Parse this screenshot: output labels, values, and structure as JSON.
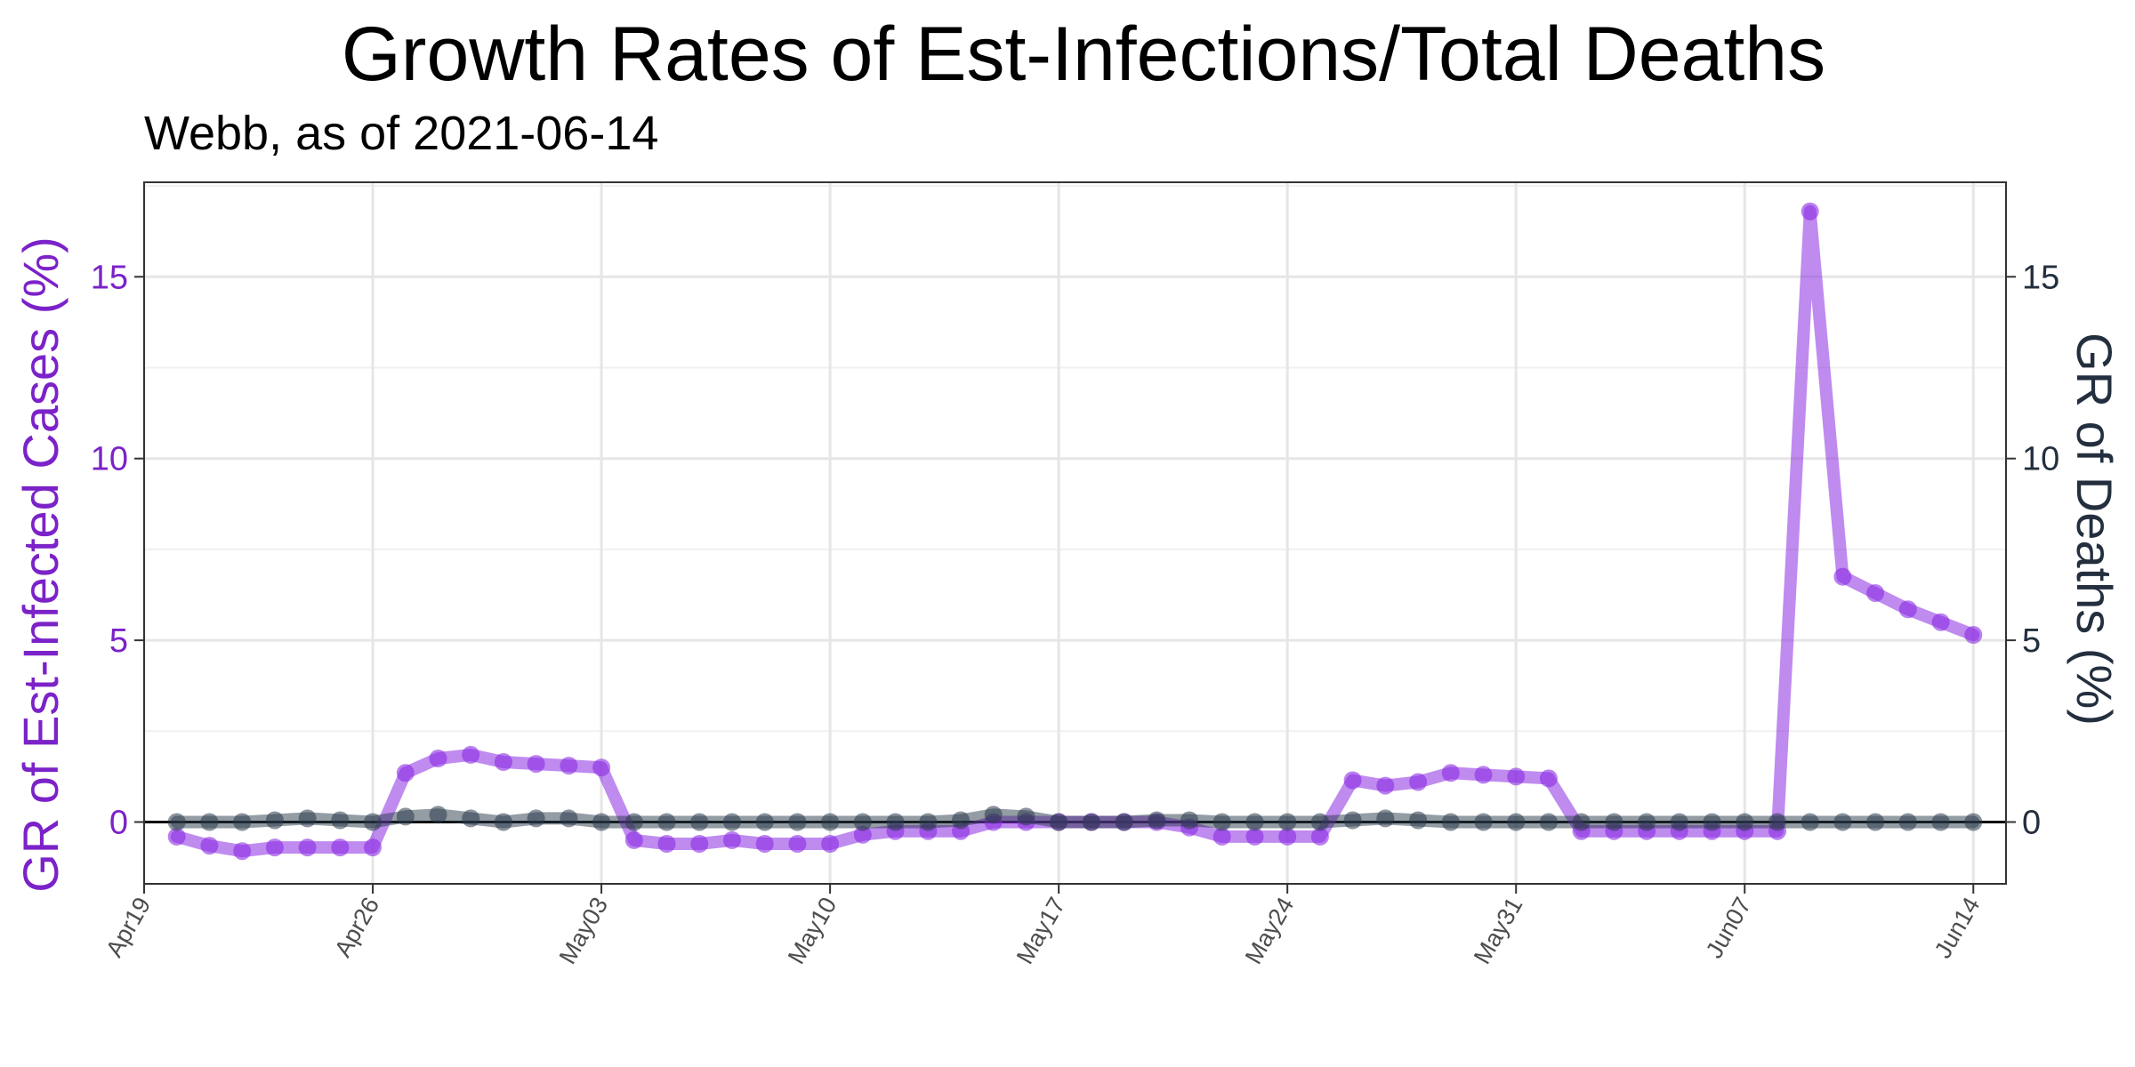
{
  "chart_data": {
    "type": "line",
    "title": "Growth Rates of Est-Infections/Total Deaths",
    "subtitle": "Webb, as of 2021-06-14",
    "ylabel_left": "GR of Est-Infected Cases (%)",
    "ylabel_right": "GR of Deaths (%)",
    "ylim": [
      -1.7,
      17.6
    ],
    "xlim": [
      "2021-04-19",
      "2021-06-15"
    ],
    "y_ticks": [
      "0",
      "5",
      "10",
      "15"
    ],
    "x_ticks": [
      {
        "date": "2021-04-19",
        "label": "Apr19"
      },
      {
        "date": "2021-04-26",
        "label": "Apr26"
      },
      {
        "date": "2021-05-03",
        "label": "May03"
      },
      {
        "date": "2021-05-10",
        "label": "May10"
      },
      {
        "date": "2021-05-17",
        "label": "May17"
      },
      {
        "date": "2021-05-24",
        "label": "May24"
      },
      {
        "date": "2021-05-31",
        "label": "May31"
      },
      {
        "date": "2021-06-07",
        "label": "Jun07"
      },
      {
        "date": "2021-06-14",
        "label": "Jun14"
      }
    ],
    "grid": true,
    "colors": {
      "cases": "#8a2be2",
      "deaths": "#2a3a4a",
      "left_axis": "#7b22c8",
      "right_axis": "#232f3e"
    },
    "series": [
      {
        "name": "GR of Est-Infected Cases (%)",
        "axis": "left",
        "points": [
          [
            "2021-04-20",
            -0.4
          ],
          [
            "2021-04-21",
            -0.65
          ],
          [
            "2021-04-22",
            -0.8
          ],
          [
            "2021-04-23",
            -0.7
          ],
          [
            "2021-04-24",
            -0.7
          ],
          [
            "2021-04-25",
            -0.7
          ],
          [
            "2021-04-26",
            -0.7
          ],
          [
            "2021-04-27",
            1.35
          ],
          [
            "2021-04-28",
            1.75
          ],
          [
            "2021-04-29",
            1.85
          ],
          [
            "2021-04-30",
            1.65
          ],
          [
            "2021-05-01",
            1.6
          ],
          [
            "2021-05-02",
            1.55
          ],
          [
            "2021-05-03",
            1.5
          ],
          [
            "2021-05-04",
            -0.5
          ],
          [
            "2021-05-05",
            -0.6
          ],
          [
            "2021-05-06",
            -0.6
          ],
          [
            "2021-05-07",
            -0.5
          ],
          [
            "2021-05-08",
            -0.6
          ],
          [
            "2021-05-09",
            -0.6
          ],
          [
            "2021-05-10",
            -0.6
          ],
          [
            "2021-05-11",
            -0.35
          ],
          [
            "2021-05-12",
            -0.25
          ],
          [
            "2021-05-13",
            -0.25
          ],
          [
            "2021-05-14",
            -0.25
          ],
          [
            "2021-05-15",
            0.0
          ],
          [
            "2021-05-16",
            0.0
          ],
          [
            "2021-05-17",
            0.0
          ],
          [
            "2021-05-18",
            0.0
          ],
          [
            "2021-05-19",
            0.0
          ],
          [
            "2021-05-20",
            0.0
          ],
          [
            "2021-05-21",
            -0.15
          ],
          [
            "2021-05-22",
            -0.4
          ],
          [
            "2021-05-23",
            -0.4
          ],
          [
            "2021-05-24",
            -0.4
          ],
          [
            "2021-05-25",
            -0.4
          ],
          [
            "2021-05-26",
            1.15
          ],
          [
            "2021-05-27",
            1.0
          ],
          [
            "2021-05-28",
            1.1
          ],
          [
            "2021-05-29",
            1.35
          ],
          [
            "2021-05-30",
            1.3
          ],
          [
            "2021-05-31",
            1.25
          ],
          [
            "2021-06-01",
            1.2
          ],
          [
            "2021-06-02",
            -0.25
          ],
          [
            "2021-06-03",
            -0.25
          ],
          [
            "2021-06-04",
            -0.25
          ],
          [
            "2021-06-05",
            -0.25
          ],
          [
            "2021-06-06",
            -0.25
          ],
          [
            "2021-06-07",
            -0.25
          ],
          [
            "2021-06-08",
            -0.25
          ],
          [
            "2021-06-09",
            16.8
          ],
          [
            "2021-06-10",
            6.75
          ],
          [
            "2021-06-11",
            6.3
          ],
          [
            "2021-06-12",
            5.85
          ],
          [
            "2021-06-13",
            5.5
          ],
          [
            "2021-06-14",
            5.15
          ]
        ]
      },
      {
        "name": "GR of Deaths (%)",
        "axis": "right",
        "points": [
          [
            "2021-04-20",
            0.0
          ],
          [
            "2021-04-21",
            0.0
          ],
          [
            "2021-04-22",
            0.0
          ],
          [
            "2021-04-23",
            0.05
          ],
          [
            "2021-04-24",
            0.1
          ],
          [
            "2021-04-25",
            0.05
          ],
          [
            "2021-04-26",
            0.0
          ],
          [
            "2021-04-27",
            0.15
          ],
          [
            "2021-04-28",
            0.2
          ],
          [
            "2021-04-29",
            0.1
          ],
          [
            "2021-04-30",
            0.0
          ],
          [
            "2021-05-01",
            0.1
          ],
          [
            "2021-05-02",
            0.1
          ],
          [
            "2021-05-03",
            0.0
          ],
          [
            "2021-05-04",
            0.0
          ],
          [
            "2021-05-05",
            0.0
          ],
          [
            "2021-05-06",
            0.0
          ],
          [
            "2021-05-07",
            0.0
          ],
          [
            "2021-05-08",
            0.0
          ],
          [
            "2021-05-09",
            0.0
          ],
          [
            "2021-05-10",
            0.0
          ],
          [
            "2021-05-11",
            0.0
          ],
          [
            "2021-05-12",
            0.0
          ],
          [
            "2021-05-13",
            0.0
          ],
          [
            "2021-05-14",
            0.05
          ],
          [
            "2021-05-15",
            0.2
          ],
          [
            "2021-05-16",
            0.15
          ],
          [
            "2021-05-17",
            0.0
          ],
          [
            "2021-05-18",
            0.0
          ],
          [
            "2021-05-19",
            0.0
          ],
          [
            "2021-05-20",
            0.05
          ],
          [
            "2021-05-21",
            0.05
          ],
          [
            "2021-05-22",
            0.0
          ],
          [
            "2021-05-23",
            0.0
          ],
          [
            "2021-05-24",
            0.0
          ],
          [
            "2021-05-25",
            0.0
          ],
          [
            "2021-05-26",
            0.05
          ],
          [
            "2021-05-27",
            0.1
          ],
          [
            "2021-05-28",
            0.05
          ],
          [
            "2021-05-29",
            0.0
          ],
          [
            "2021-05-30",
            0.0
          ],
          [
            "2021-05-31",
            0.0
          ],
          [
            "2021-06-01",
            0.0
          ],
          [
            "2021-06-02",
            0.0
          ],
          [
            "2021-06-03",
            0.0
          ],
          [
            "2021-06-04",
            0.0
          ],
          [
            "2021-06-05",
            0.0
          ],
          [
            "2021-06-06",
            0.0
          ],
          [
            "2021-06-07",
            0.0
          ],
          [
            "2021-06-08",
            0.0
          ],
          [
            "2021-06-09",
            0.0
          ],
          [
            "2021-06-10",
            0.0
          ],
          [
            "2021-06-11",
            0.0
          ],
          [
            "2021-06-12",
            0.0
          ],
          [
            "2021-06-13",
            0.0
          ],
          [
            "2021-06-14",
            0.0
          ]
        ]
      }
    ]
  }
}
